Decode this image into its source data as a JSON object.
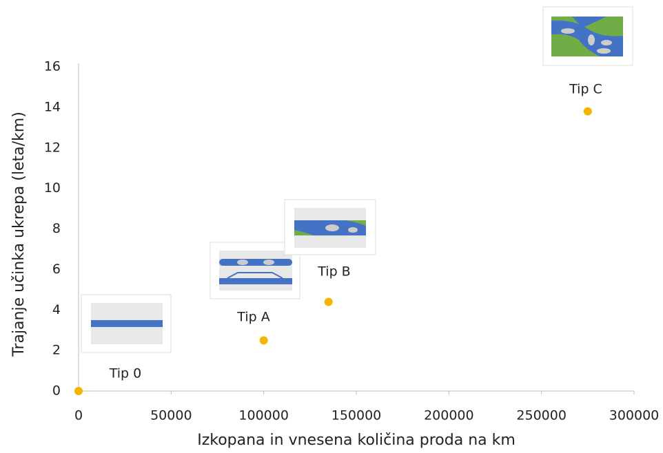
{
  "chart_data": {
    "type": "scatter",
    "x_label": "Izkopana in vnesena količina proda na km",
    "y_label": "Trajanje učinka ukrepa (leta/km)",
    "series": [
      {
        "x": [
          0,
          100000,
          135000,
          275000
        ],
        "values": [
          0,
          2.5,
          4.4,
          13.8
        ],
        "color": "#f5b400",
        "point_labels": [
          "Tip 0",
          "Tip A",
          "Tip B",
          "Tip C"
        ]
      }
    ],
    "xlim": [
      0,
      300000
    ],
    "xticks": [
      0,
      50000,
      100000,
      150000,
      200000,
      250000,
      300000
    ],
    "ylim": [
      0,
      16
    ],
    "yticks": [
      0,
      2,
      4,
      6,
      8,
      10,
      12,
      14,
      16
    ]
  }
}
